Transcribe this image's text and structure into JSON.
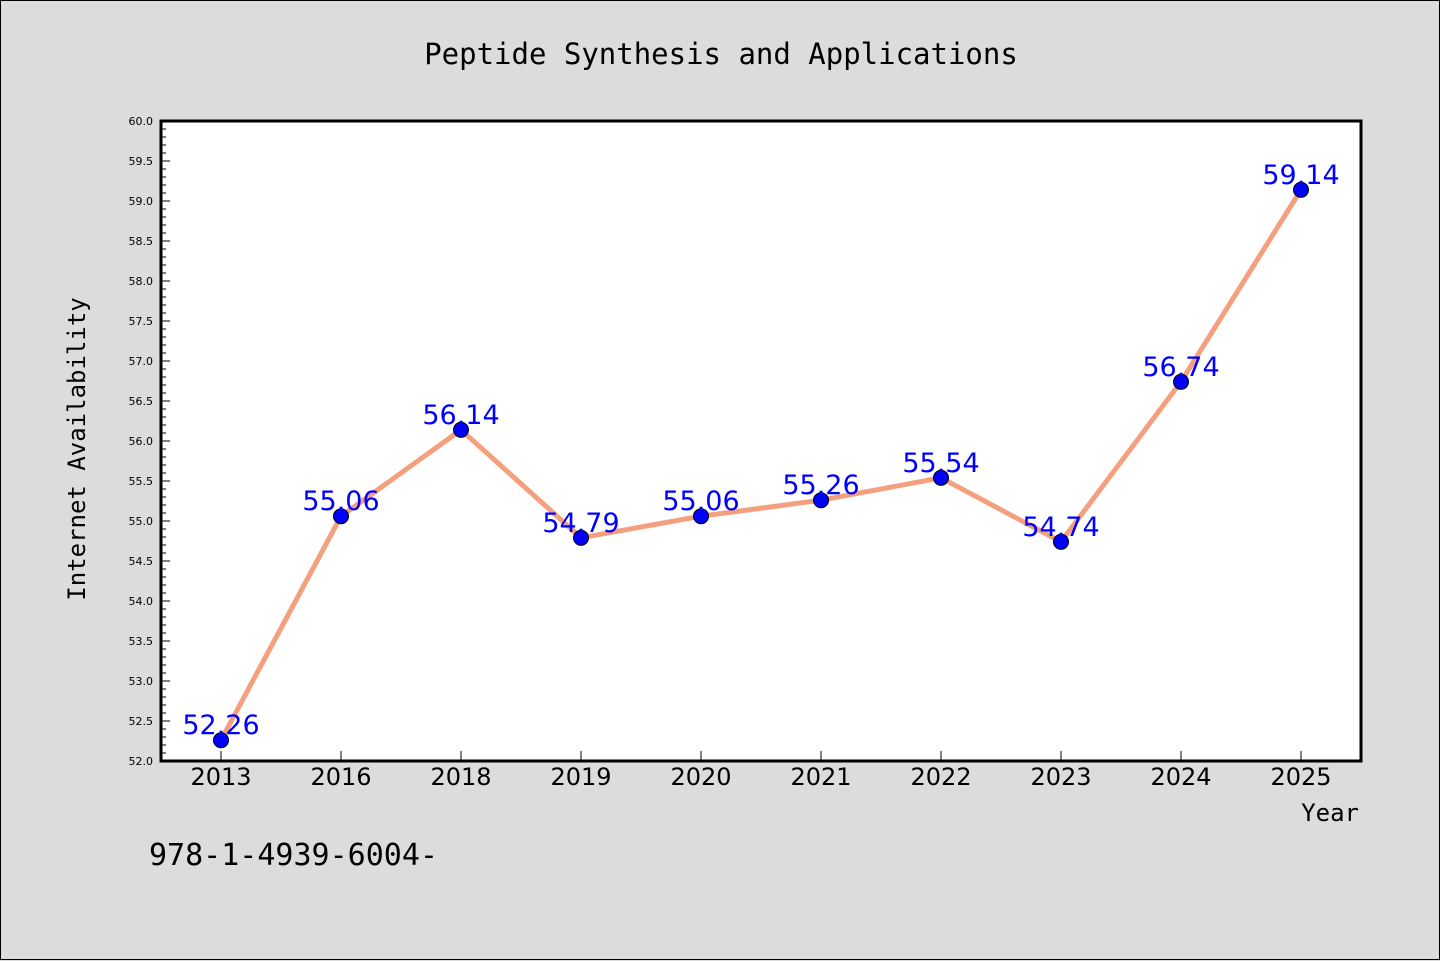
{
  "chart_data": {
    "type": "line",
    "title": "Peptide Synthesis and Applications",
    "xlabel": "Year",
    "ylabel": "Internet Availability",
    "categories": [
      "2013",
      "2016",
      "2018",
      "2019",
      "2020",
      "2021",
      "2022",
      "2023",
      "2024",
      "2025"
    ],
    "values": [
      52.26,
      55.06,
      56.14,
      54.79,
      55.06,
      55.26,
      55.54,
      54.74,
      56.74,
      59.14
    ],
    "data_labels": [
      "52.26",
      "55.06",
      "56.14",
      "54.79",
      "55.06",
      "55.26",
      "55.54",
      "54.74",
      "56.74",
      "59.14"
    ],
    "ylim": [
      52.0,
      60.0
    ],
    "yticks": [
      "52.0",
      "52.5",
      "53.0",
      "53.5",
      "54.0",
      "54.5",
      "55.0",
      "55.5",
      "56.0",
      "56.5",
      "57.0",
      "57.5",
      "58.0",
      "58.5",
      "59.0",
      "59.5",
      "60.0"
    ],
    "grid": false,
    "line_color": "#f4a07e",
    "marker_color": "#0000ff",
    "label_color": "#0000ff",
    "background_color": "#dcdcdc",
    "plot_background_color": "#ffffff"
  },
  "footer": {
    "code": "978-1-4939-6004-"
  }
}
